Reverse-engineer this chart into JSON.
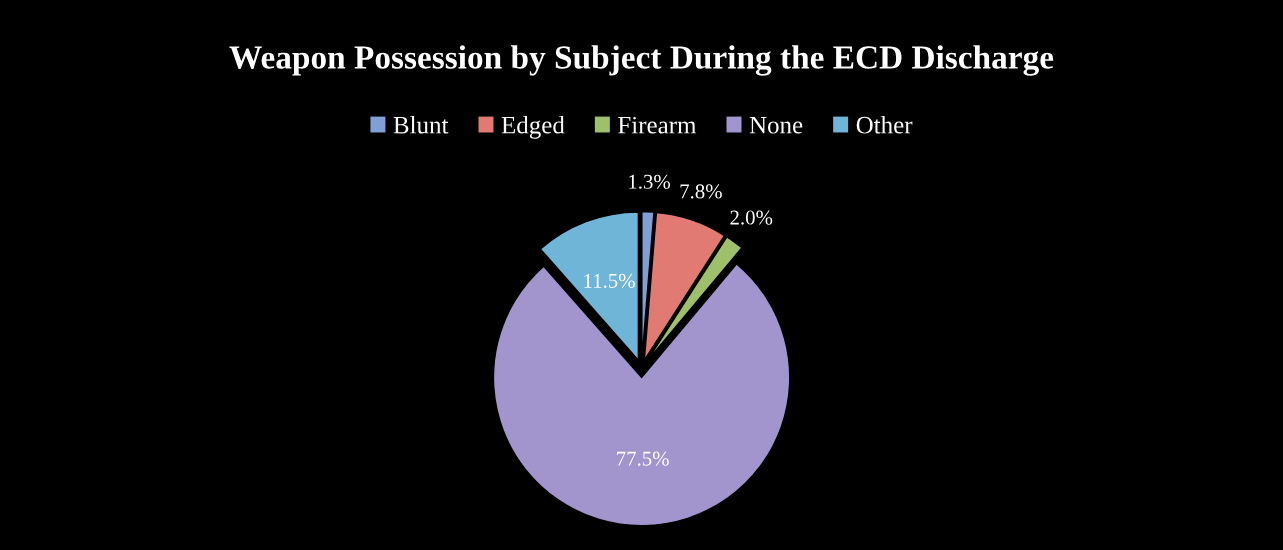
{
  "chart_data": {
    "type": "pie",
    "title": "Weapon Possession by Subject During the ECD Discharge",
    "categories": [
      "Blunt",
      "Edged",
      "Firearm",
      "None",
      "Other"
    ],
    "values": [
      1.3,
      7.8,
      2.0,
      77.5,
      11.5
    ],
    "colors": [
      "#7f9fd6",
      "#e07a72",
      "#9fc06a",
      "#a294cc",
      "#6eb5d8"
    ],
    "value_labels": [
      "1.3%",
      "7.8%",
      "2.0%",
      "77.5%",
      "11.5%"
    ],
    "legend": "top"
  }
}
